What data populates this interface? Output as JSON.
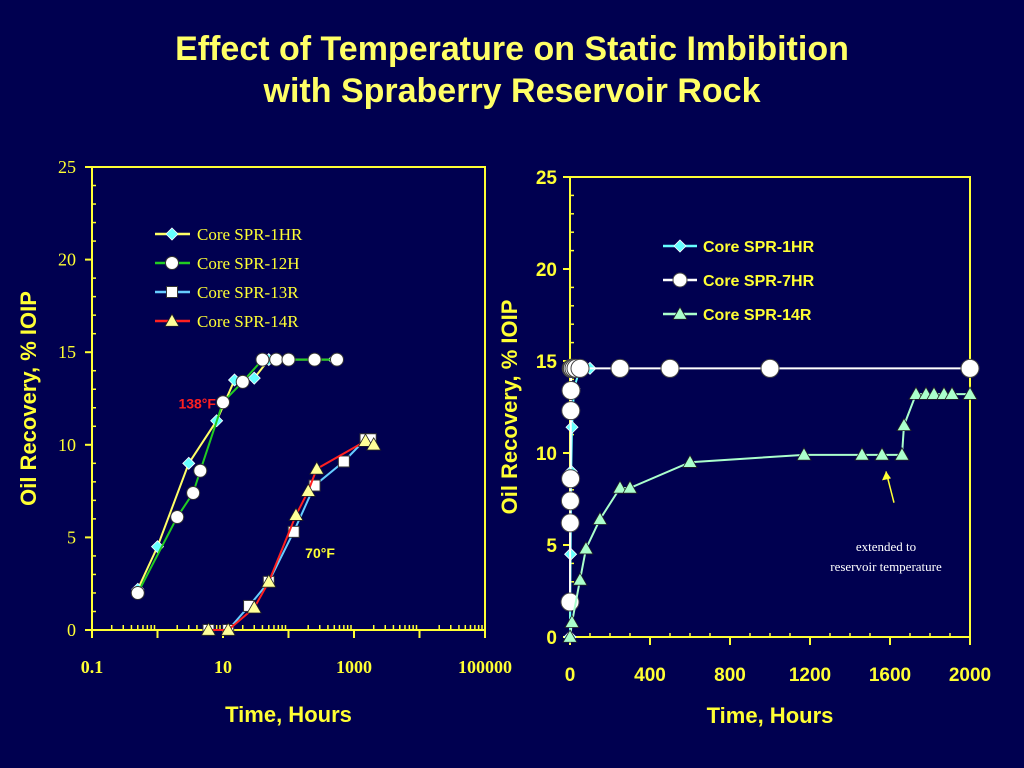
{
  "title": {
    "line1": "Effect of Temperature on Static Imbibition",
    "line2": "with Spraberry Reservoir Rock"
  },
  "colors": {
    "background": "#000050",
    "axis": "#ffff33",
    "title": "#ffff66",
    "label_red": "#ff2020"
  },
  "chart_data": [
    {
      "type": "scatter",
      "xscale": "log",
      "xlim": [
        0.1,
        100000
      ],
      "ylim": [
        0,
        25
      ],
      "xlabel": "Time, Hours",
      "ylabel": "Oil Recovery, % IOIP",
      "xticks": [
        "0.1",
        "10",
        "1000",
        "100000"
      ],
      "yticks": [
        "0",
        "5",
        "10",
        "15",
        "20",
        "25"
      ],
      "legend_position": "top-center",
      "annotations": [
        {
          "text": "138°F",
          "x": 2,
          "y": 12.5
        },
        {
          "text": "70°F",
          "x": 150,
          "y": 4.6
        }
      ],
      "series": [
        {
          "name": "Core SPR-1HR",
          "marker": "diamond",
          "line_color": "#ffff66",
          "marker_color": "#66ffff",
          "x": [
            0.5,
            1,
            3,
            8,
            15,
            30,
            50,
            500
          ],
          "y": [
            2.2,
            4.5,
            9.0,
            11.3,
            13.5,
            13.6,
            14.6,
            14.6
          ]
        },
        {
          "name": "Core SPR-12H",
          "marker": "circle",
          "line_color": "#22cc22",
          "marker_color": "#ffffff",
          "x": [
            0.5,
            2,
            3.5,
            4.5,
            10,
            20,
            40,
            65,
            100,
            250,
            550
          ],
          "y": [
            2.0,
            6.1,
            7.4,
            8.6,
            12.3,
            13.4,
            14.6,
            14.6,
            14.6,
            14.6,
            14.6
          ]
        },
        {
          "name": "Core SPR-13R",
          "marker": "square",
          "line_color": "#66ccff",
          "marker_color": "#ffffff",
          "x": [
            6,
            12,
            25,
            50,
            120,
            250,
            700,
            1500,
            1800
          ],
          "y": [
            0,
            0,
            1.3,
            2.6,
            5.3,
            7.8,
            9.1,
            10.3,
            10.3
          ]
        },
        {
          "name": "Core SPR-14R",
          "marker": "triangle",
          "line_color": "#ff2020",
          "marker_color": "#ffff99",
          "x": [
            6,
            12,
            30,
            50,
            130,
            200,
            270,
            1500,
            2000
          ],
          "y": [
            0,
            0,
            1.2,
            2.6,
            6.2,
            7.5,
            8.7,
            10.2,
            10.0
          ]
        }
      ]
    },
    {
      "type": "scatter",
      "xlim": [
        0,
        2000
      ],
      "ylim": [
        0,
        25
      ],
      "xlabel": "Time, Hours",
      "ylabel": "Oil Recovery, % IOIP",
      "xticks": [
        "0",
        "400",
        "800",
        "1200",
        "1600",
        "2000"
      ],
      "yticks": [
        "0",
        "5",
        "10",
        "15",
        "20",
        "25"
      ],
      "legend_position": "top-center",
      "annotations": [
        {
          "text": "extended to",
          "x": 1580,
          "y": 4.9
        },
        {
          "text": "reservoir temperature",
          "x": 1580,
          "y": 3.8
        }
      ],
      "arrow": {
        "from": [
          1620,
          7.3
        ],
        "to": [
          1580,
          9.0
        ]
      },
      "series": [
        {
          "name": "Core SPR-1HR",
          "marker": "diamond",
          "line_color": "#66ffff",
          "marker_color": "#66ffff",
          "x": [
            0,
            3,
            6,
            10,
            20,
            50,
            100
          ],
          "y": [
            0,
            4.5,
            9.0,
            11.4,
            13.5,
            14.6,
            14.6
          ]
        },
        {
          "name": "Core SPR-7HR",
          "marker": "circle",
          "line_color": "#ffffff",
          "marker_color": "#ffffff",
          "x": [
            0,
            1,
            2,
            3,
            4,
            5,
            6,
            7,
            8,
            12,
            20,
            30,
            50,
            250,
            500,
            1000,
            2000
          ],
          "y": [
            1.9,
            6.2,
            7.4,
            8.6,
            12.3,
            13.4,
            14.6,
            14.6,
            14.6,
            14.6,
            14.6,
            14.6,
            14.6,
            14.6,
            14.6,
            14.6,
            14.6
          ]
        },
        {
          "name": "Core SPR-14R",
          "marker": "triangle",
          "line_color": "#aaffcc",
          "marker_color": "#aaffcc",
          "x": [
            0,
            10,
            50,
            80,
            150,
            250,
            300,
            600,
            1170,
            1460,
            1560,
            1660,
            1670,
            1730,
            1780,
            1820,
            1870,
            1910,
            2000
          ],
          "y": [
            0,
            0.8,
            3.1,
            4.8,
            6.4,
            8.1,
            8.1,
            9.5,
            9.9,
            9.9,
            9.9,
            9.9,
            11.5,
            13.2,
            13.2,
            13.2,
            13.2,
            13.2,
            13.2
          ]
        }
      ]
    }
  ]
}
